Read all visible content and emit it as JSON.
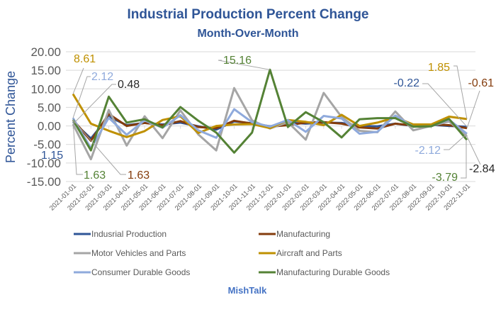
{
  "chart_data": {
    "type": "line",
    "title": "Industrial Production Percent Change",
    "subtitle": "Month-Over-Month",
    "xlabel": "",
    "ylabel": "Percent Change",
    "ylim": [
      -15,
      20
    ],
    "yticks": [
      20,
      15,
      10,
      5,
      0,
      -5,
      -10,
      -15
    ],
    "ytick_labels": [
      "20.00",
      "15.00",
      "10.00",
      "5.00",
      "0.00",
      "-5.00",
      "-10.00",
      "-15.00"
    ],
    "grid": true,
    "legend_position": "bottom",
    "x": [
      "2021-01-01",
      "2021-02-01",
      "2021-03-01",
      "2021-04-01",
      "2021-05-01",
      "2021-06-01",
      "2021-07-01",
      "2021-08-01",
      "2021-09-01",
      "2021-10-01",
      "2021-11-01",
      "2021-12-01",
      "2022-01-01",
      "2022-02-01",
      "2022-03-01",
      "2022-04-01",
      "2022-05-01",
      "2022-06-01",
      "2022-07-01",
      "2022-08-01",
      "2022-09-01",
      "2022-10-01",
      "2022-11-01"
    ],
    "series": [
      {
        "name": "Indusrial Production",
        "color": "#2F5597",
        "values": [
          1.15,
          -3.4,
          2.5,
          0.2,
          0.8,
          0.4,
          0.9,
          -0.1,
          -1.0,
          1.2,
          0.7,
          -0.1,
          0.9,
          0.6,
          0.9,
          0.8,
          0.0,
          -0.1,
          0.6,
          0.0,
          0.3,
          0.0,
          -0.22
        ]
      },
      {
        "name": "Manufacturing",
        "color": "#843C0C",
        "values": [
          1.63,
          -4.0,
          3.2,
          0.0,
          0.8,
          0.2,
          1.3,
          -0.3,
          -0.6,
          1.4,
          0.6,
          -0.2,
          0.2,
          0.9,
          1.0,
          0.6,
          -0.4,
          -0.7,
          0.6,
          0.1,
          0.4,
          0.2,
          -0.61
        ]
      },
      {
        "name": "Motor Vehicles and Parts",
        "color": "#A5A5A5",
        "values": [
          0.48,
          -9.0,
          4.3,
          -5.3,
          2.6,
          -3.3,
          4.2,
          -2.3,
          -6.6,
          10.2,
          1.5,
          -0.7,
          1.0,
          -3.7,
          8.9,
          2.4,
          -1.3,
          -1.7,
          3.9,
          -1.2,
          0.0,
          1.2,
          -2.84
        ]
      },
      {
        "name": "Aircraft and Parts",
        "color": "#BF9000",
        "values": [
          8.61,
          0.6,
          -1.3,
          -3.0,
          -1.4,
          1.6,
          2.6,
          -1.9,
          0.0,
          0.4,
          0.5,
          -0.6,
          1.6,
          1.1,
          0.2,
          3.0,
          0.0,
          0.9,
          2.3,
          0.4,
          0.4,
          2.5,
          1.85
        ]
      },
      {
        "name": "Consumer Durable Goods",
        "color": "#8FAADC",
        "values": [
          2.12,
          -6.0,
          2.2,
          -2.4,
          1.5,
          -0.5,
          2.9,
          -1.2,
          -3.2,
          4.5,
          1.0,
          -0.2,
          1.6,
          -1.6,
          2.7,
          2.0,
          -2.1,
          -1.6,
          2.8,
          -0.2,
          -0.1,
          1.7,
          -2.12
        ]
      },
      {
        "name": "Manufacturing Durable Goods",
        "color": "#548235",
        "values": [
          1.63,
          -6.6,
          7.9,
          0.9,
          1.8,
          -0.4,
          5.1,
          1.4,
          -1.8,
          -7.2,
          -1.8,
          15.16,
          -0.3,
          3.7,
          1.0,
          -3.1,
          1.8,
          2.1,
          2.1,
          -0.2,
          -0.1,
          1.9,
          -3.79
        ]
      }
    ],
    "annotations": [
      {
        "text": "8.61",
        "series": "Aircraft and Parts",
        "point": "2021-01-01"
      },
      {
        "text": "2.12",
        "series": "Consumer Durable Goods",
        "point": "2021-01-01"
      },
      {
        "text": "0.48",
        "series": "Motor Vehicles and Parts",
        "point": "2021-01-01"
      },
      {
        "text": "1.15",
        "series": "Indusrial Production",
        "point": "2021-01-01"
      },
      {
        "text": "1.63",
        "series": "Manufacturing Durable Goods",
        "point": "2021-01-01"
      },
      {
        "text": "1.63",
        "series": "Manufacturing",
        "point": "2021-01-01"
      },
      {
        "text": "15.16",
        "series": "Manufacturing Durable Goods",
        "point": "2021-12-01"
      },
      {
        "text": "1.85",
        "series": "Aircraft and Parts",
        "point": "2022-11-01"
      },
      {
        "text": "-0.22",
        "series": "Indusrial Production",
        "point": "2022-11-01"
      },
      {
        "text": "-0.61",
        "series": "Manufacturing",
        "point": "2022-11-01"
      },
      {
        "text": "-2.12",
        "series": "Consumer Durable Goods",
        "point": "2022-11-01"
      },
      {
        "text": "-2.84",
        "series": "Motor Vehicles and Parts",
        "point": "2022-11-01"
      },
      {
        "text": "-3.79",
        "series": "Manufacturing Durable Goods",
        "point": "2022-11-01"
      }
    ],
    "credit": "MishTalk"
  }
}
